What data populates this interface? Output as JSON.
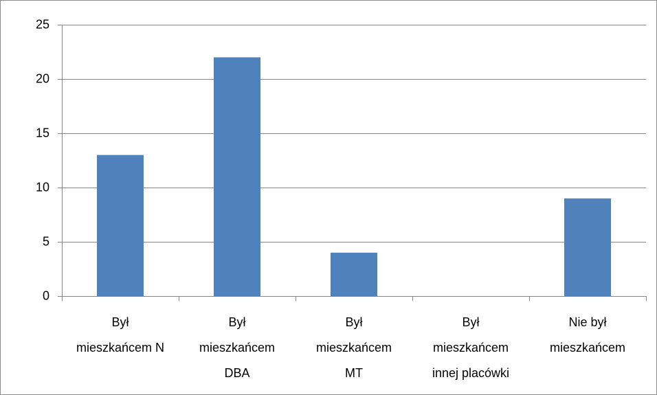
{
  "chart_data": {
    "type": "bar",
    "categories": [
      [
        "Był",
        "mieszkańcem N"
      ],
      [
        "Był",
        "mieszkańcem",
        "DBA"
      ],
      [
        "Był",
        "mieszkańcem",
        "MT"
      ],
      [
        "Był",
        "mieszkańcem",
        "innej placówki"
      ],
      [
        "Nie był",
        "mieszkańcem"
      ]
    ],
    "values": [
      13,
      22,
      4,
      0,
      9
    ],
    "color": "#4f81bd",
    "ylim": [
      0,
      25
    ],
    "yticks": [
      0,
      5,
      10,
      15,
      20,
      25
    ],
    "grid": true
  }
}
